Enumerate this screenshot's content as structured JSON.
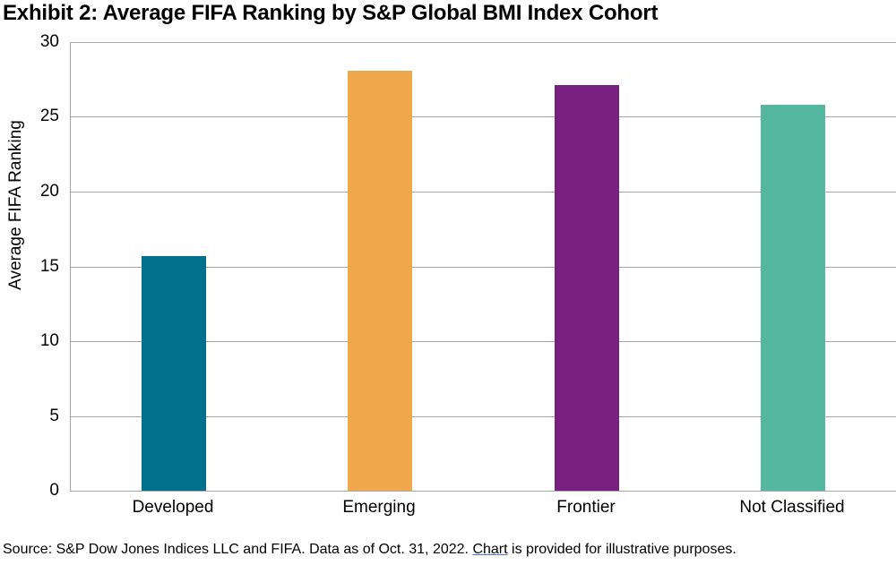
{
  "title": "Exhibit 2: Average FIFA Ranking by S&P Global BMI Index Cohort",
  "source": {
    "prefix": "Source: S&P Dow Jones Indices LLC and FIFA. Data as of Oct. 31, 2022. ",
    "link_text": "Chart",
    "suffix": " is provided for illustrative purposes.",
    "link_underline_color": "#4472c4"
  },
  "chart_data": {
    "type": "bar",
    "title": "Exhibit 2: Average FIFA Ranking by S&P Global BMI Index Cohort",
    "xlabel": "",
    "ylabel": "Average FIFA Ranking",
    "categories": [
      "Developed",
      "Emerging",
      "Frontier",
      "Not Classified"
    ],
    "values": [
      15.7,
      28.1,
      27.1,
      25.8
    ],
    "bar_colors": [
      "#00708c",
      "#f0a84f",
      "#782081",
      "#54b8a0"
    ],
    "ylim": [
      0,
      30
    ],
    "yticks": [
      0,
      5,
      10,
      15,
      20,
      25,
      30
    ],
    "grid": true,
    "gridline_color": "#a6a6a6",
    "legend": "none"
  }
}
